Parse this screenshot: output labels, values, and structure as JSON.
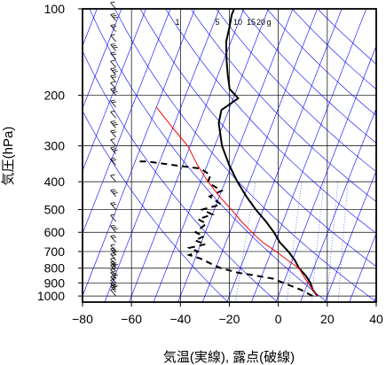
{
  "chart_data": {
    "type": "line",
    "diagram": "skew-T log-P",
    "xlabel": "気温(実線), 露点(破線)",
    "ylabel": "気圧(hPa)",
    "x_ticks": [
      -80,
      -60,
      -40,
      -20,
      0,
      20,
      40
    ],
    "y_ticks": [
      100,
      200,
      300,
      400,
      500,
      600,
      700,
      800,
      900,
      1000
    ],
    "x_range": [
      -80,
      40
    ],
    "y_range_hPa": [
      1050,
      100
    ],
    "y_scale": "log",
    "grid": true,
    "mixing_ratio_labels": [
      "1",
      "5",
      "10",
      "15",
      "20",
      "g"
    ],
    "colors": {
      "temperature": "#000000",
      "dewpoint": "#000000",
      "parcel": "#ff0000",
      "guide_lines": "#0000ff",
      "grid": "#000000"
    },
    "series": [
      {
        "style": "solid-thick",
        "points": [
          [
            16,
            1000
          ],
          [
            13,
            950
          ],
          [
            11,
            900
          ],
          [
            8,
            850
          ],
          [
            4,
            800
          ],
          [
            1,
            750
          ],
          [
            -3,
            700
          ],
          [
            -8,
            650
          ],
          [
            -12,
            600
          ],
          [
            -17,
            550
          ],
          [
            -23,
            500
          ],
          [
            -29,
            450
          ],
          [
            -35,
            400
          ],
          [
            -41,
            350
          ],
          [
            -47,
            300
          ],
          [
            -52,
            250
          ],
          [
            -53,
            225
          ],
          [
            -48,
            205
          ],
          [
            -53,
            190
          ],
          [
            -56,
            170
          ],
          [
            -59,
            150
          ],
          [
            -62,
            130
          ],
          [
            -63,
            115
          ],
          [
            -64,
            105
          ],
          [
            -64,
            100
          ]
        ]
      },
      {
        "style": "dashed-thick",
        "points": [
          [
            14,
            1000
          ],
          [
            8,
            950
          ],
          [
            0,
            900
          ],
          [
            -5,
            870
          ],
          [
            -12,
            850
          ],
          [
            -20,
            830
          ],
          [
            -28,
            800
          ],
          [
            -33,
            770
          ],
          [
            -38,
            740
          ],
          [
            -43,
            720
          ],
          [
            -40,
            700
          ],
          [
            -44,
            680
          ],
          [
            -38,
            660
          ],
          [
            -43,
            640
          ],
          [
            -40,
            620
          ],
          [
            -44,
            600
          ],
          [
            -41,
            560
          ],
          [
            -45,
            540
          ],
          [
            -40,
            520
          ],
          [
            -45,
            500
          ],
          [
            -38,
            480
          ],
          [
            -44,
            450
          ],
          [
            -40,
            430
          ],
          [
            -45,
            410
          ],
          [
            -47,
            400
          ],
          [
            -47,
            380
          ],
          [
            -52,
            360
          ],
          [
            -64,
            350
          ],
          [
            -75,
            340
          ],
          [
            -80,
            340
          ]
        ]
      },
      {
        "style": "red",
        "points": [
          [
            16,
            1000
          ],
          [
            13,
            950
          ],
          [
            10,
            900
          ],
          [
            7,
            850
          ],
          [
            4,
            800
          ],
          [
            -2,
            750
          ],
          [
            -8,
            700
          ],
          [
            -15,
            650
          ],
          [
            -21,
            600
          ],
          [
            -27,
            550
          ],
          [
            -33,
            500
          ],
          [
            -40,
            450
          ],
          [
            -47,
            400
          ],
          [
            -54,
            350
          ],
          [
            -61,
            300
          ],
          [
            -70,
            260
          ],
          [
            -80,
            220
          ]
        ]
      }
    ],
    "wind_barbs": {
      "side": "left",
      "x_position_C": -70,
      "levels_hPa": [
        1000,
        970,
        950,
        925,
        900,
        870,
        850,
        820,
        800,
        780,
        750,
        720,
        700,
        650,
        600,
        550,
        500,
        450,
        400,
        350,
        320,
        300,
        280,
        260,
        240,
        220,
        200,
        190,
        180,
        170,
        160,
        150,
        140,
        130,
        120,
        110,
        100
      ]
    }
  }
}
